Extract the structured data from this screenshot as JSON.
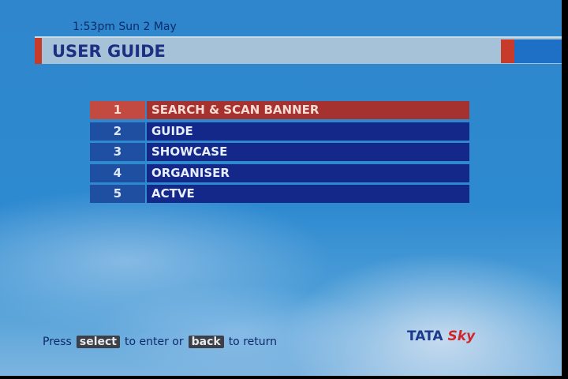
{
  "header": {
    "datetime": "1:53pm Sun 2 May",
    "title": "USER GUIDE"
  },
  "menu": {
    "selected_index": 0,
    "items": [
      {
        "number": "1",
        "label": "SEARCH & SCAN BANNER"
      },
      {
        "number": "2",
        "label": "GUIDE"
      },
      {
        "number": "3",
        "label": "SHOWCASE"
      },
      {
        "number": "4",
        "label": "ORGANISER"
      },
      {
        "number": "5",
        "label": "ACTVE"
      }
    ]
  },
  "footer": {
    "press": "Press",
    "select_key": "select",
    "to_enter": "to enter or",
    "back_key": "back",
    "to_return": "to return"
  },
  "logo": {
    "tata": "TATA",
    "sky": "Sky"
  },
  "colors": {
    "selected": "#a63230",
    "item": "#14288a",
    "accent_red": "#c83a2a"
  }
}
